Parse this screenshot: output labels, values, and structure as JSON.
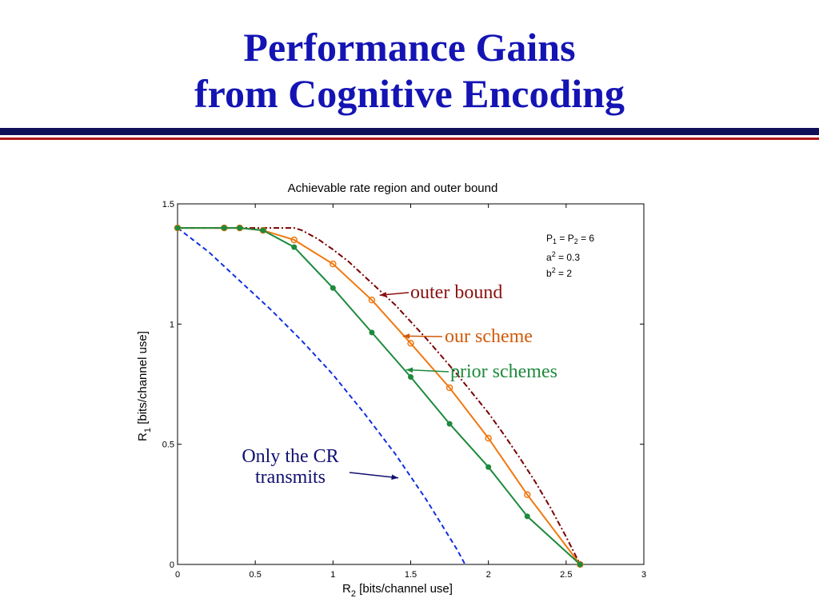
{
  "slide": {
    "title_line1": "Performance Gains",
    "title_line2": "from Cognitive Encoding",
    "title_color": "#1414b4",
    "rule_colors": [
      "#10105a",
      "#b01818"
    ]
  },
  "chart_data": {
    "type": "line",
    "title": "Achievable rate region and outer bound",
    "xlabel": {
      "main": "R",
      "sub": "2",
      "rest": " [bits/channel use]"
    },
    "ylabel": {
      "main": "R",
      "sub": "1",
      "rest": " [bits/channel use]"
    },
    "xlim": [
      0,
      3
    ],
    "ylim": [
      0,
      1.5
    ],
    "xticks": [
      0,
      0.5,
      1,
      1.5,
      2,
      2.5,
      3
    ],
    "xtick_labels": [
      "0",
      "0.5",
      "1",
      "1.5",
      "2",
      "2.5",
      "3"
    ],
    "yticks": [
      0,
      0.5,
      1,
      1.5
    ],
    "ytick_labels": [
      "0",
      "0.5",
      "1",
      "1.5"
    ],
    "grid": false,
    "params": [
      {
        "a": "P",
        "b": "1",
        "c": " = P",
        "d": "2",
        "e": " = 6"
      },
      {
        "a": "a",
        "sup": "2",
        "rest": " = 0.3"
      },
      {
        "a": "b",
        "sup": "2",
        "rest": " = 2"
      }
    ],
    "series": [
      {
        "name": "outer bound",
        "color": "#7a0000",
        "style": "dash-dot",
        "x": [
          0,
          0.75,
          0.8,
          0.9,
          1.0,
          1.1,
          1.2,
          1.3,
          1.4,
          1.5,
          1.6,
          1.7,
          1.8,
          1.9,
          2.0,
          2.1,
          2.2,
          2.3,
          2.4,
          2.5,
          2.59
        ],
        "y": [
          1.4,
          1.4,
          1.39,
          1.355,
          1.31,
          1.26,
          1.2,
          1.14,
          1.08,
          1.01,
          0.94,
          0.865,
          0.79,
          0.71,
          0.63,
          0.54,
          0.445,
          0.345,
          0.235,
          0.115,
          0
        ]
      },
      {
        "name": "our scheme",
        "color": "#f07810",
        "marker": "circle",
        "x": [
          0,
          0.3,
          0.4,
          0.55,
          0.75,
          1.0,
          1.25,
          1.5,
          1.75,
          2.0,
          2.25,
          2.59
        ],
        "y": [
          1.4,
          1.4,
          1.4,
          1.39,
          1.35,
          1.25,
          1.1,
          0.92,
          0.735,
          0.525,
          0.29,
          0
        ]
      },
      {
        "name": "prior schemes",
        "color": "#1e8a3c",
        "marker": "dot",
        "x": [
          0,
          0.3,
          0.4,
          0.55,
          0.75,
          1.0,
          1.25,
          1.5,
          1.75,
          2.0,
          2.25,
          2.59
        ],
        "y": [
          1.4,
          1.4,
          1.4,
          1.39,
          1.32,
          1.15,
          0.965,
          0.78,
          0.585,
          0.405,
          0.2,
          0
        ]
      },
      {
        "name": "Only the CR transmits",
        "color": "#1030e0",
        "style": "dashed",
        "x": [
          0,
          0.2,
          0.4,
          0.6,
          0.8,
          1.0,
          1.2,
          1.4,
          1.6,
          1.8,
          1.85
        ],
        "y": [
          1.4,
          1.3,
          1.18,
          1.06,
          0.93,
          0.79,
          0.63,
          0.46,
          0.27,
          0.06,
          0
        ]
      }
    ],
    "annotations": [
      {
        "text": "outer bound",
        "color": "#8b1010",
        "arrow_to": [
          1.3,
          1.12
        ]
      },
      {
        "text": "our scheme",
        "color": "#d05a0a",
        "arrow_to": [
          1.45,
          0.95
        ]
      },
      {
        "text": "prior schemes",
        "color": "#1e8a3c",
        "arrow_to": [
          1.47,
          0.81
        ]
      },
      {
        "line1": "Only the CR",
        "line2": "transmits",
        "color": "#101070",
        "arrow_to": [
          1.42,
          0.36
        ]
      }
    ]
  }
}
